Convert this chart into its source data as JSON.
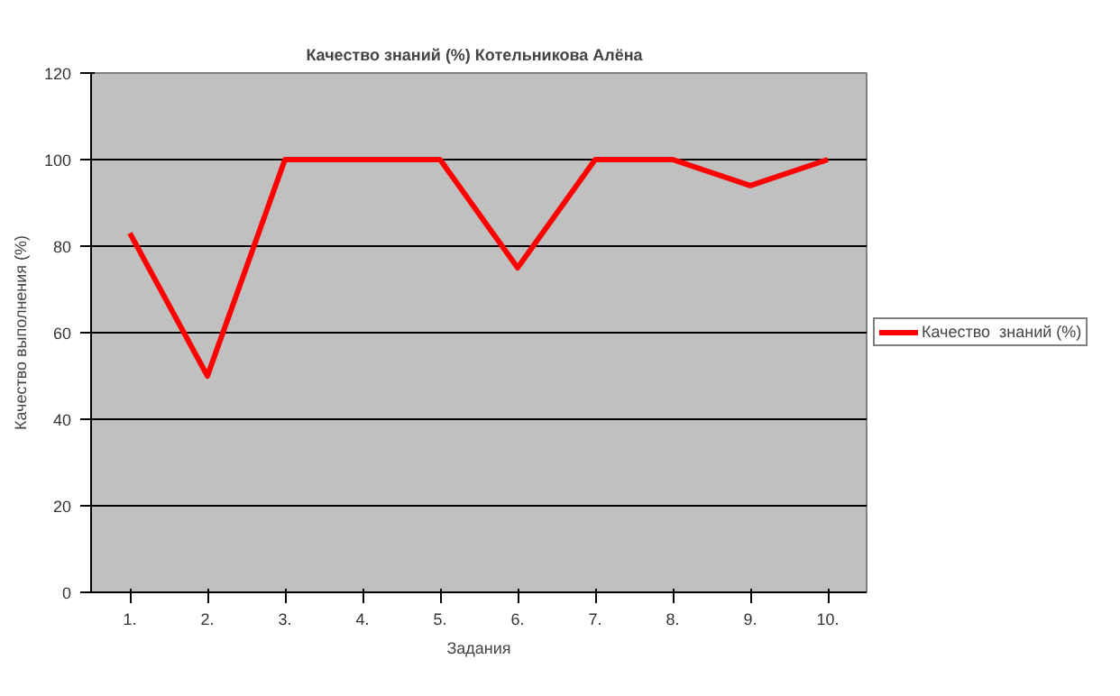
{
  "chart_data": {
    "type": "line",
    "title": "Качество  знаний (%) Котельникова  Алёна",
    "xlabel": "Задания",
    "ylabel": "Качество выполнения (%)",
    "categories": [
      "1.",
      "2.",
      "3.",
      "4.",
      "5.",
      "6.",
      "7.",
      "8.",
      "9.",
      "10."
    ],
    "series": [
      {
        "name": "Качество  знаний (%)",
        "color": "#ff0000",
        "values": [
          83,
          50,
          100,
          100,
          100,
          75,
          100,
          100,
          94,
          100
        ]
      }
    ],
    "ylim": [
      0,
      120
    ],
    "yticks": [
      0,
      20,
      40,
      60,
      80,
      100,
      120
    ],
    "grid": "y",
    "legend": "right",
    "marker": "none",
    "line_style": "solid"
  }
}
